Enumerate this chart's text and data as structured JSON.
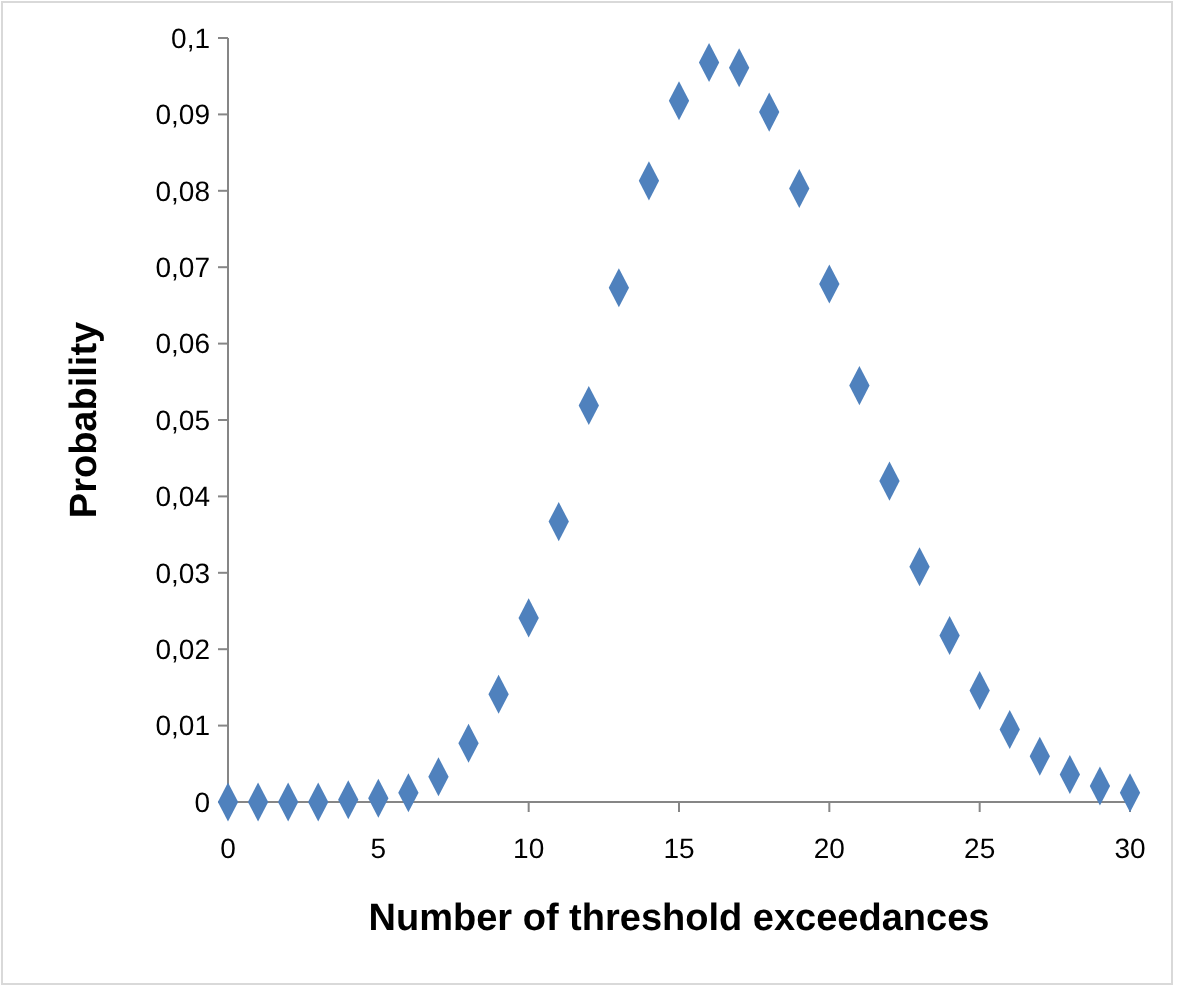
{
  "chart_data": {
    "type": "scatter",
    "xlabel": "Number of threshold exceedances",
    "ylabel": "Probability",
    "x": [
      0,
      1,
      2,
      3,
      4,
      5,
      6,
      7,
      8,
      9,
      10,
      11,
      12,
      13,
      14,
      15,
      16,
      17,
      18,
      19,
      20,
      21,
      22,
      23,
      24,
      25,
      26,
      27,
      28,
      29,
      30
    ],
    "series": [
      {
        "color": "#4f81bd",
        "values": [
          0,
          0,
          0,
          0,
          0.0003,
          0.0005,
          0.0012,
          0.0033,
          0.0077,
          0.0141,
          0.0241,
          0.0367,
          0.0519,
          0.0673,
          0.0813,
          0.0918,
          0.0968,
          0.0961,
          0.0903,
          0.0803,
          0.0678,
          0.0545,
          0.042,
          0.0308,
          0.0218,
          0.0146,
          0.0095,
          0.006,
          0.0036,
          0.0021,
          0.0012
        ]
      }
    ],
    "xlim": [
      0,
      30
    ],
    "xticks": [
      0,
      5,
      10,
      15,
      20,
      25,
      30
    ],
    "ylim": [
      0,
      0.1
    ],
    "yticks": [
      {
        "value": 0,
        "label": "0"
      },
      {
        "value": 0.01,
        "label": "0,01"
      },
      {
        "value": 0.02,
        "label": "0,02"
      },
      {
        "value": 0.03,
        "label": "0,03"
      },
      {
        "value": 0.04,
        "label": "0,04"
      },
      {
        "value": 0.05,
        "label": "0,05"
      },
      {
        "value": 0.06,
        "label": "0,06"
      },
      {
        "value": 0.07,
        "label": "0,07"
      },
      {
        "value": 0.08,
        "label": "0,08"
      },
      {
        "value": 0.09,
        "label": "0,09"
      },
      {
        "value": 0.1,
        "label": "0,1"
      }
    ],
    "marker": "diamond",
    "grid": false
  }
}
